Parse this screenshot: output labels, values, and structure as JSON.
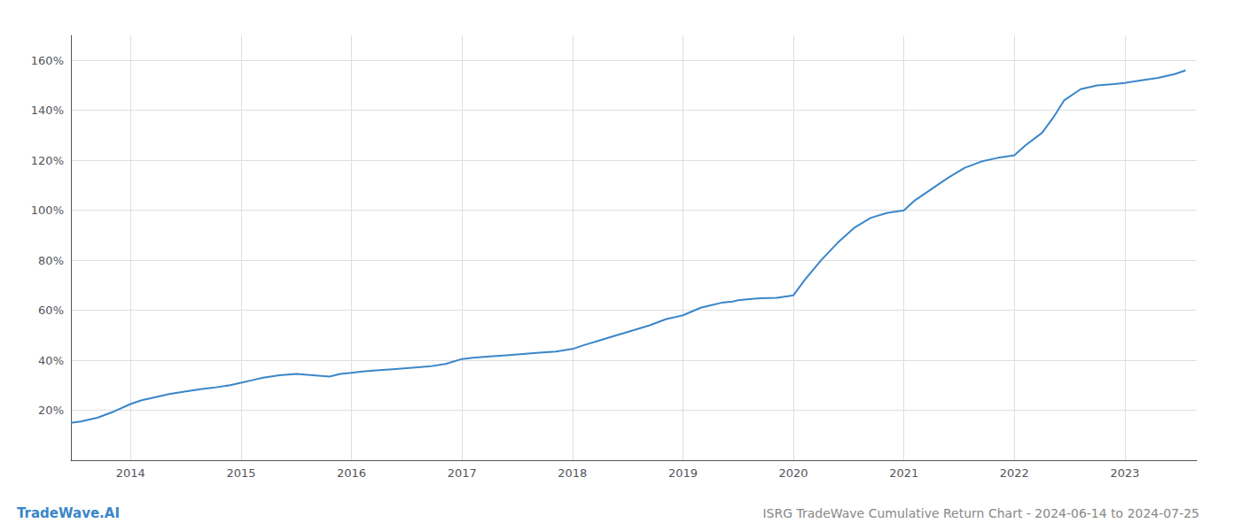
{
  "chart_data": {
    "type": "line",
    "title": "ISRG TradeWave Cumulative Return Chart - 2024-06-14 to 2024-07-25",
    "annotations": [
      "TradeWave.AI"
    ],
    "color": "#3a86c8",
    "grid": true,
    "x": [
      2013.46,
      2013.55,
      2013.7,
      2013.85,
      2014.0,
      2014.1,
      2014.2,
      2014.35,
      2014.5,
      2014.65,
      2014.75,
      2014.9,
      2015.0,
      2015.1,
      2015.2,
      2015.35,
      2015.5,
      2015.65,
      2015.8,
      2015.9,
      2016.0,
      2016.1,
      2016.25,
      2016.4,
      2016.55,
      2016.7,
      2016.85,
      2017.0,
      2017.1,
      2017.25,
      2017.4,
      2017.55,
      2017.7,
      2017.85,
      2018.0,
      2018.1,
      2018.25,
      2018.4,
      2018.55,
      2018.7,
      2018.85,
      2019.0,
      2019.08,
      2019.16,
      2019.25,
      2019.35,
      2019.45,
      2019.5,
      2019.6,
      2019.7,
      2019.85,
      2020.0,
      2020.1,
      2020.25,
      2020.4,
      2020.55,
      2020.7,
      2020.85,
      2021.0,
      2021.1,
      2021.25,
      2021.4,
      2021.55,
      2021.7,
      2021.85,
      2022.0,
      2022.1,
      2022.25,
      2022.35,
      2022.45,
      2022.6,
      2022.75,
      2022.9,
      2023.0,
      2023.15,
      2023.3,
      2023.45,
      2023.55
    ],
    "values": [
      15.0,
      15.5,
      17.0,
      19.5,
      22.5,
      24.0,
      25.0,
      26.5,
      27.5,
      28.5,
      29.0,
      30.0,
      31.0,
      32.0,
      33.0,
      34.0,
      34.5,
      34.0,
      33.5,
      34.5,
      35.0,
      35.5,
      36.0,
      36.5,
      37.0,
      37.5,
      38.5,
      40.5,
      41.0,
      41.5,
      42.0,
      42.5,
      43.0,
      43.5,
      44.5,
      46.0,
      48.0,
      50.0,
      52.0,
      54.0,
      56.5,
      58.0,
      59.5,
      61.0,
      62.0,
      63.0,
      63.5,
      64.0,
      64.5,
      64.8,
      65.0,
      66.0,
      72.0,
      80.0,
      87.0,
      93.0,
      97.0,
      99.0,
      100.0,
      104.0,
      108.5,
      113.0,
      117.0,
      119.5,
      121.0,
      122.0,
      126.0,
      131.0,
      137.0,
      144.0,
      148.5,
      150.0,
      150.5,
      151.0,
      152.0,
      153.0,
      154.5,
      156.0
    ],
    "xlim": [
      2013.46,
      2023.65
    ],
    "xticks": [
      2014,
      2015,
      2016,
      2017,
      2018,
      2019,
      2020,
      2021,
      2022,
      2023
    ],
    "ylim": [
      0,
      170
    ],
    "yticks": [
      {
        "value": 20,
        "label": "20%"
      },
      {
        "value": 40,
        "label": "40%"
      },
      {
        "value": 60,
        "label": "60%"
      },
      {
        "value": 80,
        "label": "80%"
      },
      {
        "value": 100,
        "label": "100%"
      },
      {
        "value": 120,
        "label": "120%"
      },
      {
        "value": 140,
        "label": "140%"
      },
      {
        "value": 160,
        "label": "160%"
      }
    ]
  }
}
